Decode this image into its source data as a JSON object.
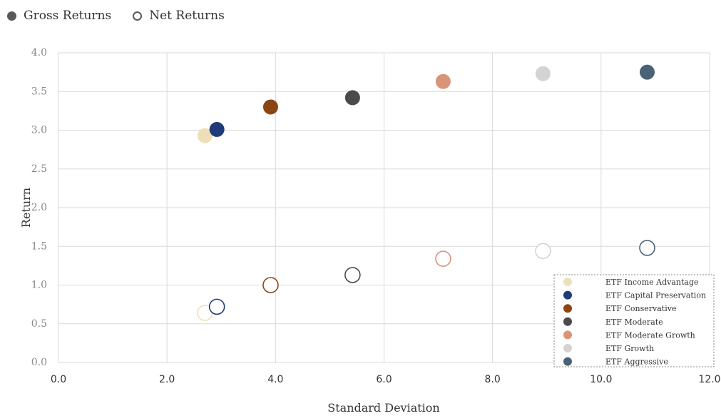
{
  "chart_data": {
    "type": "scatter",
    "title": "",
    "xlabel": "Standard Deviation",
    "ylabel": "Return",
    "xlim": [
      0,
      12
    ],
    "ylim": [
      0,
      4
    ],
    "x_ticks": [
      "0.0",
      "2.0",
      "4.0",
      "6.0",
      "8.0",
      "10.0",
      "12.0"
    ],
    "y_ticks": [
      "0.0",
      "0.5",
      "1.0",
      "1.5",
      "2.0",
      "2.5",
      "3.0",
      "3.5",
      "4.0"
    ],
    "grid": true,
    "marker_legend": [
      {
        "label": "Gross Returns",
        "style": "filled"
      },
      {
        "label": "Net Returns",
        "style": "hollow"
      }
    ],
    "legend_position": "bottom-right",
    "series": [
      {
        "name": "ETF Income Advantage",
        "color": "#EDE0B8",
        "gross": {
          "x": 2.7,
          "y": 2.93
        },
        "net": {
          "x": 2.7,
          "y": 0.64
        }
      },
      {
        "name": "ETF Capital Preservation",
        "color": "#1F3B7A",
        "gross": {
          "x": 2.92,
          "y": 3.01
        },
        "net": {
          "x": 2.92,
          "y": 0.72
        }
      },
      {
        "name": "ETF Conservative",
        "color": "#8B4513",
        "gross": {
          "x": 3.91,
          "y": 3.3
        },
        "net": {
          "x": 3.91,
          "y": 1.0
        }
      },
      {
        "name": "ETF Moderate",
        "color": "#4A4A4A",
        "gross": {
          "x": 5.42,
          "y": 3.42
        },
        "net": {
          "x": 5.42,
          "y": 1.13
        }
      },
      {
        "name": "ETF Moderate Growth",
        "color": "#D99478",
        "gross": {
          "x": 7.09,
          "y": 3.63
        },
        "net": {
          "x": 7.09,
          "y": 1.34
        }
      },
      {
        "name": "ETF Growth",
        "color": "#D3D3D3",
        "gross": {
          "x": 8.93,
          "y": 3.73
        },
        "net": {
          "x": 8.93,
          "y": 1.44
        }
      },
      {
        "name": "ETF Aggressive",
        "color": "#4A6277",
        "gross": {
          "x": 10.85,
          "y": 3.75
        },
        "net": {
          "x": 10.85,
          "y": 1.48
        }
      }
    ]
  }
}
